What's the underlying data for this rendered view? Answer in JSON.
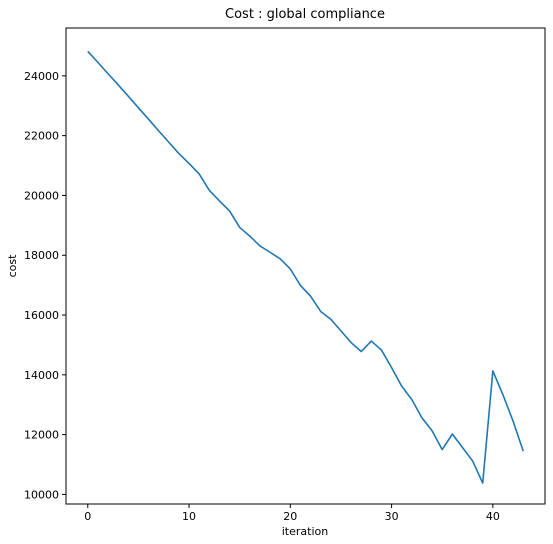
{
  "chart_data": {
    "type": "line",
    "title": "Cost : global compliance",
    "xlabel": "iteration",
    "ylabel": "cost",
    "xlim": [
      -2.15,
      45.15
    ],
    "ylim": [
      9680,
      25600
    ],
    "grid": false,
    "xticks": [
      0,
      10,
      20,
      30,
      40
    ],
    "yticks": [
      10000,
      12000,
      14000,
      16000,
      18000,
      20000,
      22000,
      24000
    ],
    "xtick_labels": [
      "0",
      "10",
      "20",
      "30",
      "40"
    ],
    "ytick_labels": [
      "10000",
      "12000",
      "14000",
      "16000",
      "18000",
      "20000",
      "22000",
      "24000"
    ],
    "series": [
      {
        "color": "#1f77b4",
        "x": [
          0,
          1,
          2,
          3,
          4,
          5,
          6,
          7,
          8,
          9,
          10,
          11,
          12,
          13,
          14,
          15,
          16,
          17,
          18,
          19,
          20,
          21,
          22,
          23,
          24,
          25,
          26,
          27,
          28,
          29,
          30,
          31,
          32,
          33,
          34,
          35,
          36,
          37,
          38,
          39,
          40,
          41,
          42,
          43
        ],
        "y": [
          24820,
          24450,
          24070,
          23700,
          23320,
          22930,
          22550,
          22160,
          21780,
          21400,
          21070,
          20720,
          20170,
          19820,
          19480,
          18930,
          18640,
          18310,
          18100,
          17880,
          17540,
          16990,
          16630,
          16120,
          15860,
          15470,
          15080,
          14780,
          15130,
          14830,
          14240,
          13620,
          13170,
          12560,
          12130,
          11500,
          12020,
          11570,
          11120,
          10380,
          14130,
          13330,
          12450,
          11450
        ]
      }
    ]
  }
}
